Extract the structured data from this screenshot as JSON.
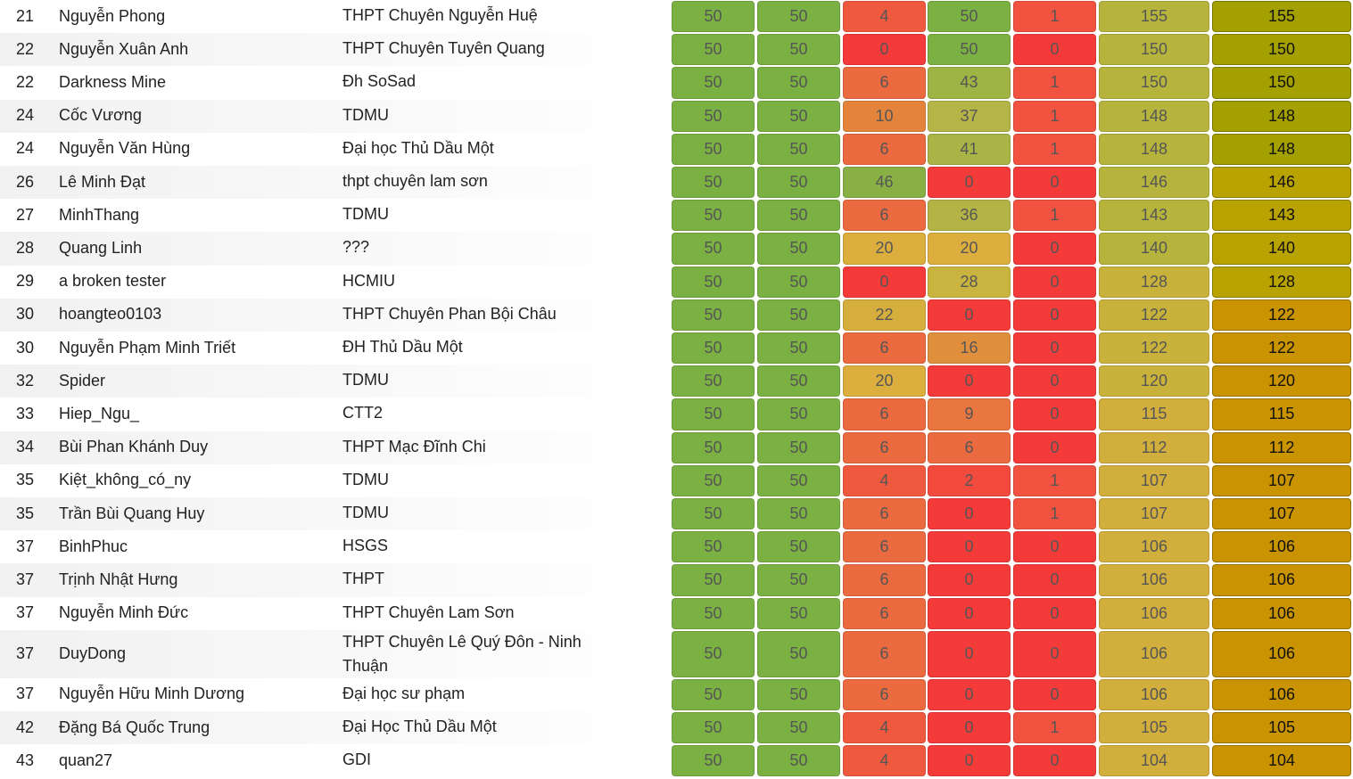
{
  "colors": {
    "p50": "#7bb142",
    "p46": "#89b045",
    "p43": "#9fb445",
    "p41": "#a9b446",
    "p37": "#b5b446",
    "p36": "#b4b446",
    "p28": "#c9b440",
    "p22": "#d6ae3d",
    "p20": "#dcae3e",
    "p16": "#e0903c",
    "p10": "#e4843c",
    "p9": "#e8763e",
    "p6": "#ec6a40",
    "p4": "#ef5a3e",
    "p2": "#f24b3e",
    "p1": "#f25341",
    "p0": "#f53a3a",
    "sum_high": "#b6b43c",
    "sum_mid": "#c8b23c",
    "sum_low": "#d2ae3c",
    "total_high": "#a3a000",
    "total_mid": "#b9a300",
    "total_low": "#c99400"
  },
  "rows": [
    {
      "rank": "21",
      "name": "Nguyễn Phong",
      "school": "THPT Chuyên Nguyễn Huệ",
      "p1": "50",
      "p2": "50",
      "p3": "4",
      "p4": "50",
      "p5": "1",
      "sum": "155",
      "total": "155"
    },
    {
      "rank": "22",
      "name": "Nguyễn Xuân Anh",
      "school": "THPT Chuyên Tuyên Quang",
      "p1": "50",
      "p2": "50",
      "p3": "0",
      "p4": "50",
      "p5": "0",
      "sum": "150",
      "total": "150"
    },
    {
      "rank": "22",
      "name": "Darkness Mine",
      "school": "Đh SoSad",
      "p1": "50",
      "p2": "50",
      "p3": "6",
      "p4": "43",
      "p5": "1",
      "sum": "150",
      "total": "150"
    },
    {
      "rank": "24",
      "name": "Cốc Vương",
      "school": "TDMU",
      "p1": "50",
      "p2": "50",
      "p3": "10",
      "p4": "37",
      "p5": "1",
      "sum": "148",
      "total": "148"
    },
    {
      "rank": "24",
      "name": "Nguyễn Văn Hùng",
      "school": "Đại học Thủ Dầu Một",
      "p1": "50",
      "p2": "50",
      "p3": "6",
      "p4": "41",
      "p5": "1",
      "sum": "148",
      "total": "148"
    },
    {
      "rank": "26",
      "name": "Lê Minh Đạt",
      "school": "thpt chuyên lam sơn",
      "p1": "50",
      "p2": "50",
      "p3": "46",
      "p4": "0",
      "p5": "0",
      "sum": "146",
      "total": "146"
    },
    {
      "rank": "27",
      "name": "MinhThang",
      "school": "TDMU",
      "p1": "50",
      "p2": "50",
      "p3": "6",
      "p4": "36",
      "p5": "1",
      "sum": "143",
      "total": "143"
    },
    {
      "rank": "28",
      "name": "Quang Linh",
      "school": "???",
      "p1": "50",
      "p2": "50",
      "p3": "20",
      "p4": "20",
      "p5": "0",
      "sum": "140",
      "total": "140"
    },
    {
      "rank": "29",
      "name": "a broken tester",
      "school": "HCMIU",
      "p1": "50",
      "p2": "50",
      "p3": "0",
      "p4": "28",
      "p5": "0",
      "sum": "128",
      "total": "128"
    },
    {
      "rank": "30",
      "name": "hoangteo0103",
      "school": "THPT Chuyên Phan Bội Châu",
      "p1": "50",
      "p2": "50",
      "p3": "22",
      "p4": "0",
      "p5": "0",
      "sum": "122",
      "total": "122"
    },
    {
      "rank": "30",
      "name": "Nguyễn Phạm Minh Triết",
      "school": "ĐH Thủ Dầu Một",
      "p1": "50",
      "p2": "50",
      "p3": "6",
      "p4": "16",
      "p5": "0",
      "sum": "122",
      "total": "122"
    },
    {
      "rank": "32",
      "name": "Spider",
      "school": "TDMU",
      "p1": "50",
      "p2": "50",
      "p3": "20",
      "p4": "0",
      "p5": "0",
      "sum": "120",
      "total": "120"
    },
    {
      "rank": "33",
      "name": "Hiep_Ngu_",
      "school": "CTT2",
      "p1": "50",
      "p2": "50",
      "p3": "6",
      "p4": "9",
      "p5": "0",
      "sum": "115",
      "total": "115"
    },
    {
      "rank": "34",
      "name": "Bùi Phan Khánh Duy",
      "school": "THPT Mạc Đĩnh Chi",
      "p1": "50",
      "p2": "50",
      "p3": "6",
      "p4": "6",
      "p5": "0",
      "sum": "112",
      "total": "112"
    },
    {
      "rank": "35",
      "name": "Kiệt_không_có_ny",
      "school": "TDMU",
      "p1": "50",
      "p2": "50",
      "p3": "4",
      "p4": "2",
      "p5": "1",
      "sum": "107",
      "total": "107"
    },
    {
      "rank": "35",
      "name": "Trần Bùi Quang Huy",
      "school": "TDMU",
      "p1": "50",
      "p2": "50",
      "p3": "6",
      "p4": "0",
      "p5": "1",
      "sum": "107",
      "total": "107"
    },
    {
      "rank": "37",
      "name": "BinhPhuc",
      "school": "HSGS",
      "p1": "50",
      "p2": "50",
      "p3": "6",
      "p4": "0",
      "p5": "0",
      "sum": "106",
      "total": "106"
    },
    {
      "rank": "37",
      "name": "Trịnh Nhật Hưng",
      "school": "THPT",
      "p1": "50",
      "p2": "50",
      "p3": "6",
      "p4": "0",
      "p5": "0",
      "sum": "106",
      "total": "106"
    },
    {
      "rank": "37",
      "name": "Nguyễn Minh Đức",
      "school": "THPT Chuyên Lam Sơn",
      "p1": "50",
      "p2": "50",
      "p3": "6",
      "p4": "0",
      "p5": "0",
      "sum": "106",
      "total": "106"
    },
    {
      "rank": "37",
      "name": "DuyDong",
      "school": "THPT Chuyên Lê Quý Đôn - Ninh Thuận",
      "p1": "50",
      "p2": "50",
      "p3": "6",
      "p4": "0",
      "p5": "0",
      "sum": "106",
      "total": "106"
    },
    {
      "rank": "37",
      "name": "Nguyễn Hữu Minh Dương",
      "school": "Đại học sư phạm",
      "p1": "50",
      "p2": "50",
      "p3": "6",
      "p4": "0",
      "p5": "0",
      "sum": "106",
      "total": "106"
    },
    {
      "rank": "42",
      "name": "Đặng Bá Quốc Trung",
      "school": "Đại Học Thủ Dầu Một",
      "p1": "50",
      "p2": "50",
      "p3": "4",
      "p4": "0",
      "p5": "1",
      "sum": "105",
      "total": "105"
    },
    {
      "rank": "43",
      "name": "quan27",
      "school": "GDI",
      "p1": "50",
      "p2": "50",
      "p3": "4",
      "p4": "0",
      "p5": "0",
      "sum": "104",
      "total": "104"
    }
  ]
}
